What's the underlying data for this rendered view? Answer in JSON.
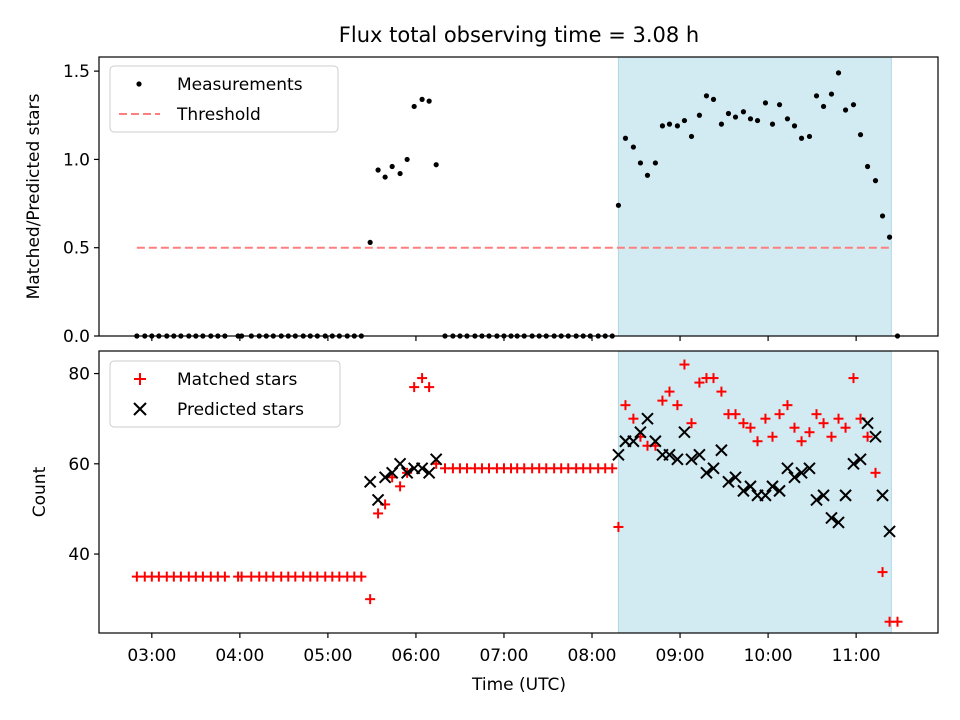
{
  "title": "Flux total observing time = 3.08 h",
  "xlabel": "Time (UTC)",
  "x_ticks": [
    "03:00",
    "04:00",
    "05:00",
    "06:00",
    "07:00",
    "08:00",
    "09:00",
    "10:00",
    "11:00"
  ],
  "x_tick_hours": [
    3,
    4,
    5,
    6,
    7,
    8,
    9,
    10,
    11
  ],
  "xlim": [
    2.4,
    11.93
  ],
  "shaded_span": [
    8.3,
    11.4
  ],
  "colors": {
    "shade": "#add8e6",
    "threshold": "#ff7f7f",
    "matched": "#ff0000",
    "predicted": "#000000",
    "measurement": "#000000"
  },
  "chart_data": [
    {
      "type": "scatter",
      "ylabel": "Matched/Predicted stars",
      "ylim": [
        0,
        1.58
      ],
      "yticks": [
        "0.0",
        "0.5",
        "1.0",
        "1.5"
      ],
      "ytick_values": [
        0,
        0.5,
        1.0,
        1.5
      ],
      "legend": {
        "position": "top-left",
        "entries": [
          "Measurements",
          "Threshold"
        ]
      },
      "threshold": {
        "value": 0.5,
        "x_start": 2.83,
        "x_end": 11.4
      },
      "series": [
        {
          "name": "Measurements",
          "points": [
            [
              2.83,
              0
            ],
            [
              2.92,
              0
            ],
            [
              3.0,
              0
            ],
            [
              3.08,
              0
            ],
            [
              3.17,
              0
            ],
            [
              3.25,
              0
            ],
            [
              3.33,
              0
            ],
            [
              3.42,
              0
            ],
            [
              3.5,
              0
            ],
            [
              3.58,
              0
            ],
            [
              3.67,
              0
            ],
            [
              3.75,
              0
            ],
            [
              3.83,
              0
            ],
            [
              3.98,
              0
            ],
            [
              4.02,
              0
            ],
            [
              4.13,
              0
            ],
            [
              4.22,
              0
            ],
            [
              4.3,
              0
            ],
            [
              4.38,
              0
            ],
            [
              4.47,
              0
            ],
            [
              4.55,
              0
            ],
            [
              4.63,
              0
            ],
            [
              4.72,
              0
            ],
            [
              4.8,
              0
            ],
            [
              4.88,
              0
            ],
            [
              4.97,
              0
            ],
            [
              5.05,
              0
            ],
            [
              5.13,
              0
            ],
            [
              5.22,
              0
            ],
            [
              5.3,
              0
            ],
            [
              5.38,
              0
            ],
            [
              5.48,
              0.53
            ],
            [
              5.57,
              0.94
            ],
            [
              5.65,
              0.9
            ],
            [
              5.73,
              0.96
            ],
            [
              5.82,
              0.92
            ],
            [
              5.9,
              1.0
            ],
            [
              5.98,
              1.3
            ],
            [
              6.07,
              1.34
            ],
            [
              6.15,
              1.33
            ],
            [
              6.23,
              0.97
            ],
            [
              6.33,
              0
            ],
            [
              6.42,
              0
            ],
            [
              6.5,
              0
            ],
            [
              6.58,
              0
            ],
            [
              6.67,
              0
            ],
            [
              6.75,
              0
            ],
            [
              6.83,
              0
            ],
            [
              6.92,
              0
            ],
            [
              7.0,
              0
            ],
            [
              7.08,
              0
            ],
            [
              7.15,
              0
            ],
            [
              7.23,
              0
            ],
            [
              7.32,
              0
            ],
            [
              7.4,
              0
            ],
            [
              7.48,
              0
            ],
            [
              7.57,
              0
            ],
            [
              7.65,
              0
            ],
            [
              7.73,
              0
            ],
            [
              7.82,
              0
            ],
            [
              7.9,
              0
            ],
            [
              7.98,
              0
            ],
            [
              8.07,
              0
            ],
            [
              8.15,
              0
            ],
            [
              8.23,
              0
            ],
            [
              8.3,
              0.74
            ],
            [
              8.38,
              1.12
            ],
            [
              8.47,
              1.07
            ],
            [
              8.55,
              0.98
            ],
            [
              8.63,
              0.91
            ],
            [
              8.72,
              0.98
            ],
            [
              8.8,
              1.19
            ],
            [
              8.88,
              1.2
            ],
            [
              8.97,
              1.19
            ],
            [
              9.05,
              1.22
            ],
            [
              9.13,
              1.13
            ],
            [
              9.22,
              1.25
            ],
            [
              9.3,
              1.36
            ],
            [
              9.38,
              1.34
            ],
            [
              9.47,
              1.2
            ],
            [
              9.55,
              1.26
            ],
            [
              9.63,
              1.24
            ],
            [
              9.72,
              1.27
            ],
            [
              9.8,
              1.23
            ],
            [
              9.88,
              1.22
            ],
            [
              9.97,
              1.32
            ],
            [
              10.05,
              1.2
            ],
            [
              10.13,
              1.31
            ],
            [
              10.22,
              1.23
            ],
            [
              10.3,
              1.19
            ],
            [
              10.38,
              1.12
            ],
            [
              10.47,
              1.13
            ],
            [
              10.55,
              1.36
            ],
            [
              10.63,
              1.3
            ],
            [
              10.72,
              1.37
            ],
            [
              10.8,
              1.49
            ],
            [
              10.88,
              1.28
            ],
            [
              10.97,
              1.31
            ],
            [
              11.05,
              1.14
            ],
            [
              11.13,
              0.96
            ],
            [
              11.22,
              0.88
            ],
            [
              11.3,
              0.68
            ],
            [
              11.38,
              0.56
            ],
            [
              11.47,
              0
            ]
          ]
        }
      ]
    },
    {
      "type": "scatter",
      "ylabel": "Count",
      "ylim": [
        22.5,
        85
      ],
      "yticks": [
        "40",
        "60",
        "80"
      ],
      "ytick_values": [
        40,
        60,
        80
      ],
      "legend": {
        "position": "top-left",
        "entries": [
          "Matched stars",
          "Predicted stars"
        ]
      },
      "series": [
        {
          "name": "Matched stars",
          "marker": "plus",
          "points": [
            [
              2.83,
              35
            ],
            [
              2.92,
              35
            ],
            [
              3.0,
              35
            ],
            [
              3.08,
              35
            ],
            [
              3.17,
              35
            ],
            [
              3.25,
              35
            ],
            [
              3.33,
              35
            ],
            [
              3.42,
              35
            ],
            [
              3.5,
              35
            ],
            [
              3.58,
              35
            ],
            [
              3.67,
              35
            ],
            [
              3.75,
              35
            ],
            [
              3.83,
              35
            ],
            [
              3.98,
              35
            ],
            [
              4.02,
              35
            ],
            [
              4.13,
              35
            ],
            [
              4.22,
              35
            ],
            [
              4.3,
              35
            ],
            [
              4.38,
              35
            ],
            [
              4.47,
              35
            ],
            [
              4.55,
              35
            ],
            [
              4.63,
              35
            ],
            [
              4.72,
              35
            ],
            [
              4.8,
              35
            ],
            [
              4.88,
              35
            ],
            [
              4.97,
              35
            ],
            [
              5.05,
              35
            ],
            [
              5.13,
              35
            ],
            [
              5.22,
              35
            ],
            [
              5.3,
              35
            ],
            [
              5.38,
              35
            ],
            [
              5.48,
              30
            ],
            [
              5.57,
              49
            ],
            [
              5.65,
              51
            ],
            [
              5.73,
              57
            ],
            [
              5.82,
              55
            ],
            [
              5.9,
              58
            ],
            [
              5.98,
              77
            ],
            [
              6.07,
              79
            ],
            [
              6.15,
              77
            ],
            [
              6.23,
              60
            ],
            [
              6.33,
              59
            ],
            [
              6.42,
              59
            ],
            [
              6.5,
              59
            ],
            [
              6.58,
              59
            ],
            [
              6.67,
              59
            ],
            [
              6.75,
              59
            ],
            [
              6.83,
              59
            ],
            [
              6.92,
              59
            ],
            [
              7.0,
              59
            ],
            [
              7.08,
              59
            ],
            [
              7.15,
              59
            ],
            [
              7.23,
              59
            ],
            [
              7.32,
              59
            ],
            [
              7.4,
              59
            ],
            [
              7.48,
              59
            ],
            [
              7.57,
              59
            ],
            [
              7.65,
              59
            ],
            [
              7.73,
              59
            ],
            [
              7.82,
              59
            ],
            [
              7.9,
              59
            ],
            [
              7.98,
              59
            ],
            [
              8.07,
              59
            ],
            [
              8.15,
              59
            ],
            [
              8.23,
              59
            ],
            [
              8.3,
              46
            ],
            [
              8.38,
              73
            ],
            [
              8.47,
              70
            ],
            [
              8.55,
              66
            ],
            [
              8.63,
              64
            ],
            [
              8.72,
              64
            ],
            [
              8.8,
              74
            ],
            [
              8.88,
              76
            ],
            [
              8.97,
              73
            ],
            [
              9.05,
              82
            ],
            [
              9.13,
              69
            ],
            [
              9.22,
              78
            ],
            [
              9.3,
              79
            ],
            [
              9.38,
              79
            ],
            [
              9.47,
              76
            ],
            [
              9.55,
              71
            ],
            [
              9.63,
              71
            ],
            [
              9.72,
              69
            ],
            [
              9.8,
              68
            ],
            [
              9.88,
              65
            ],
            [
              9.97,
              70
            ],
            [
              10.05,
              66
            ],
            [
              10.13,
              71
            ],
            [
              10.22,
              73
            ],
            [
              10.3,
              68
            ],
            [
              10.38,
              65
            ],
            [
              10.47,
              67
            ],
            [
              10.55,
              71
            ],
            [
              10.63,
              69
            ],
            [
              10.72,
              66
            ],
            [
              10.8,
              70
            ],
            [
              10.88,
              68
            ],
            [
              10.97,
              79
            ],
            [
              11.05,
              70
            ],
            [
              11.13,
              66
            ],
            [
              11.22,
              58
            ],
            [
              11.3,
              36
            ],
            [
              11.38,
              25
            ],
            [
              11.47,
              25
            ]
          ]
        },
        {
          "name": "Predicted stars",
          "marker": "x",
          "points": [
            [
              5.48,
              56
            ],
            [
              5.57,
              52
            ],
            [
              5.65,
              57
            ],
            [
              5.73,
              58
            ],
            [
              5.82,
              60
            ],
            [
              5.9,
              58
            ],
            [
              5.98,
              59
            ],
            [
              6.07,
              59
            ],
            [
              6.15,
              58
            ],
            [
              6.23,
              61
            ],
            [
              8.3,
              62
            ],
            [
              8.38,
              65
            ],
            [
              8.47,
              65
            ],
            [
              8.55,
              67
            ],
            [
              8.63,
              70
            ],
            [
              8.72,
              65
            ],
            [
              8.8,
              62
            ],
            [
              8.88,
              62
            ],
            [
              8.97,
              61
            ],
            [
              9.05,
              67
            ],
            [
              9.13,
              61
            ],
            [
              9.22,
              62
            ],
            [
              9.3,
              58
            ],
            [
              9.38,
              59
            ],
            [
              9.47,
              63
            ],
            [
              9.55,
              56
            ],
            [
              9.63,
              57
            ],
            [
              9.72,
              54
            ],
            [
              9.8,
              55
            ],
            [
              9.88,
              53
            ],
            [
              9.97,
              53
            ],
            [
              10.05,
              55
            ],
            [
              10.13,
              54
            ],
            [
              10.22,
              59
            ],
            [
              10.3,
              57
            ],
            [
              10.38,
              58
            ],
            [
              10.47,
              59
            ],
            [
              10.55,
              52
            ],
            [
              10.63,
              53
            ],
            [
              10.72,
              48
            ],
            [
              10.8,
              47
            ],
            [
              10.88,
              53
            ],
            [
              10.97,
              60
            ],
            [
              11.05,
              61
            ],
            [
              11.13,
              69
            ],
            [
              11.22,
              66
            ],
            [
              11.3,
              53
            ],
            [
              11.38,
              45
            ]
          ]
        }
      ]
    }
  ]
}
